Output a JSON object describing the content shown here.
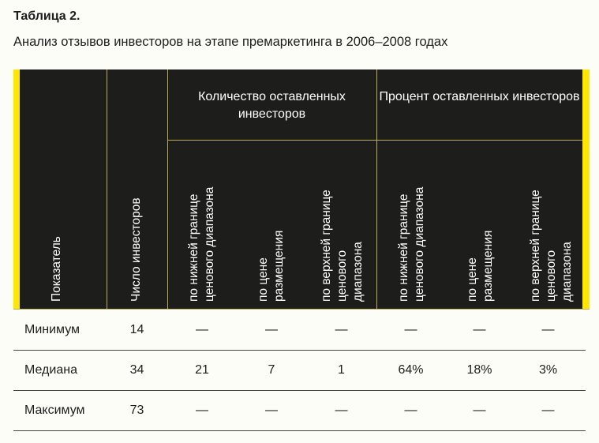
{
  "title": "Таблица 2.",
  "subtitle": "Анализ отзывов инвесторов на этапе премаркетинга в 2006–2008 годах",
  "header": {
    "indicator": "Показатель",
    "investors": "Число инвесторов",
    "group_count": "Количество оставленных инвесторов",
    "group_percent": "Процент оставленных инвесторов",
    "sub": [
      "по нижней границе\nценового диапазона",
      "по цене\nразмещения",
      "по верхней границе\nценового\nдиапазона",
      "по нижней границе\nценового диапазона",
      "по цене\nразмещения",
      "по верхней границе\nценового\nдиапазона"
    ]
  },
  "rows": [
    {
      "label": "Минимум",
      "values": [
        "14",
        "—",
        "—",
        "—",
        "—",
        "—",
        "—"
      ]
    },
    {
      "label": "Медиана",
      "values": [
        "34",
        "21",
        "7",
        "1",
        "64%",
        "18%",
        "3%"
      ]
    },
    {
      "label": "Максимум",
      "values": [
        "73",
        "—",
        "—",
        "—",
        "—",
        "—",
        "—"
      ]
    }
  ]
}
